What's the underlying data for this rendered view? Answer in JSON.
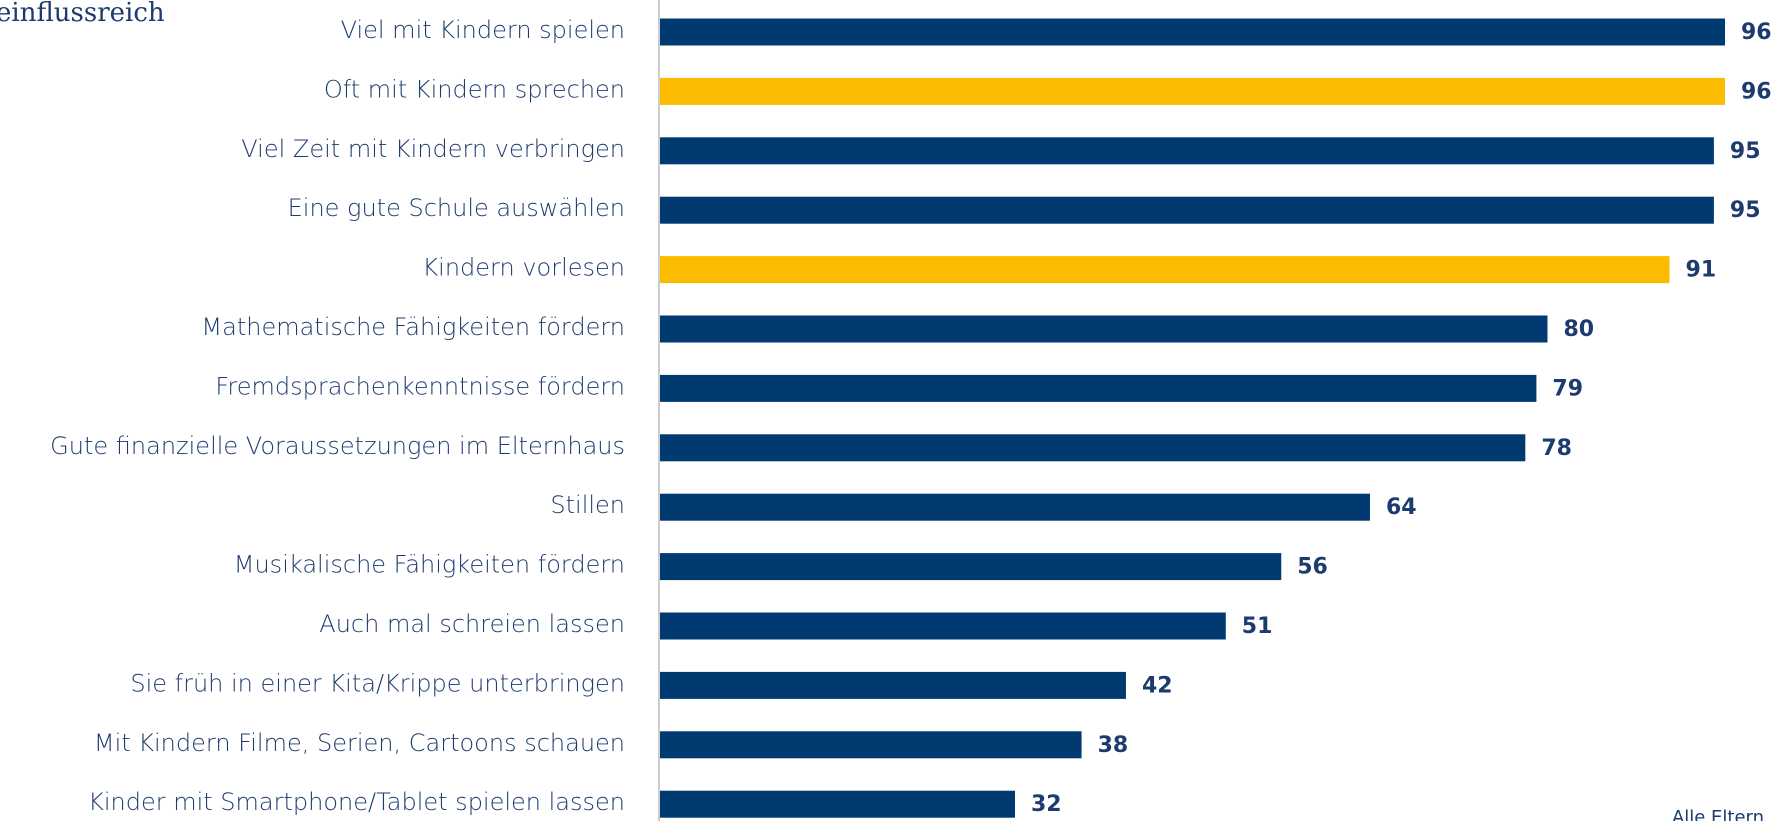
{
  "chart_data": {
    "type": "bar",
    "orientation": "horizontal",
    "title": "einflussreich",
    "note": "Alle Eltern",
    "categories": [
      "Viel mit Kindern spielen",
      "Oft mit Kindern sprechen",
      "Viel Zeit mit Kindern verbringen",
      "Eine gute Schule auswählen",
      "Kindern vorlesen",
      "Mathematische Fähigkeiten fördern",
      "Fremdsprachenkenntnisse fördern",
      "Gute finanzielle Voraussetzungen im Elternhaus",
      "Stillen",
      "Musikalische Fähigkeiten fördern",
      "Auch mal schreien lassen",
      "Sie früh in einer Kita/Krippe unterbringen",
      "Mit Kindern Filme, Serien, Cartoons schauen",
      "Kinder mit Smartphone/Tablet spielen lassen"
    ],
    "values": [
      96,
      96,
      95,
      95,
      91,
      80,
      79,
      78,
      64,
      56,
      51,
      42,
      38,
      32
    ],
    "colors": [
      "#003a70",
      "#fbbc00",
      "#003a70",
      "#003a70",
      "#fbbc00",
      "#003a70",
      "#003a70",
      "#003a70",
      "#003a70",
      "#003a70",
      "#003a70",
      "#003a70",
      "#003a70",
      "#003a70"
    ]
  }
}
